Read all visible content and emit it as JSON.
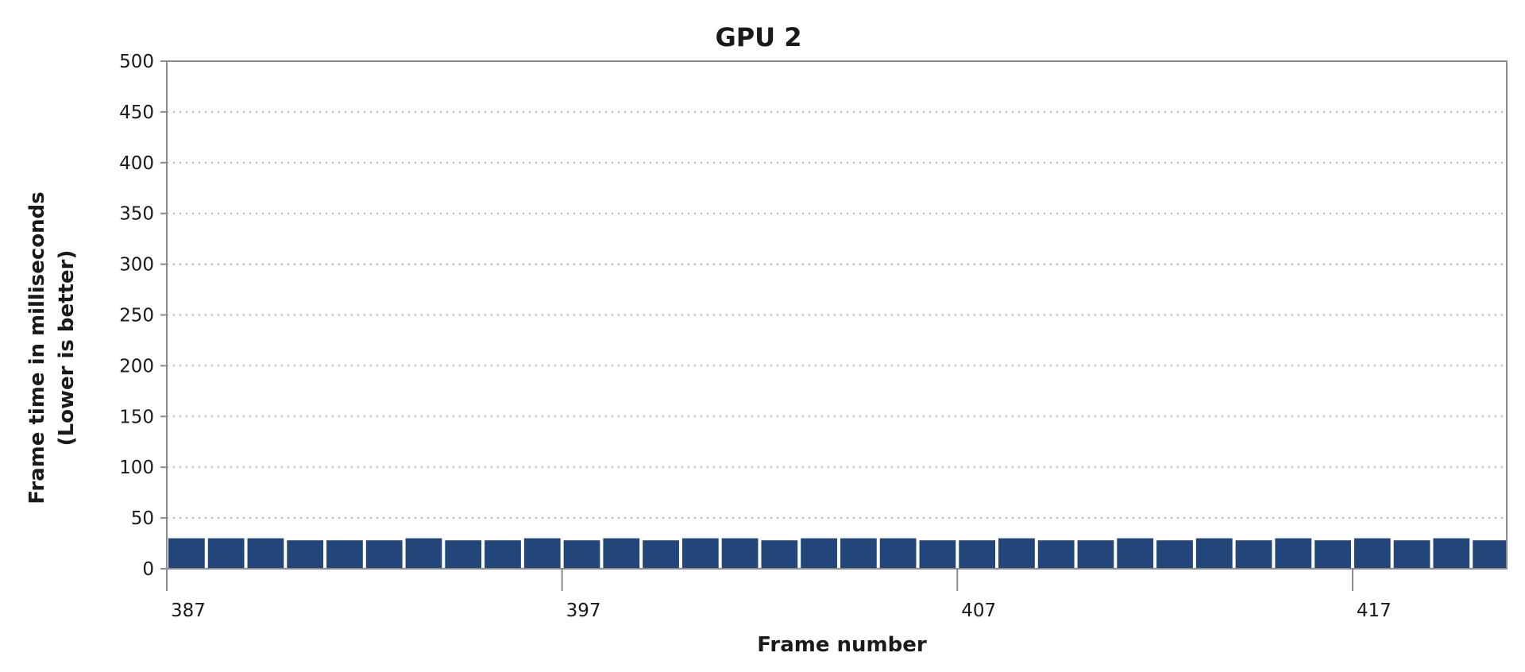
{
  "chart_data": {
    "type": "bar",
    "title": "GPU 2",
    "xlabel": "Frame number",
    "ylabel": "Frame time in milliseconds",
    "ylabel_sub": "(Lower is better)",
    "ylim": [
      0,
      500
    ],
    "yticks": [
      0,
      50,
      100,
      150,
      200,
      250,
      300,
      350,
      400,
      450,
      500
    ],
    "xticks": [
      387,
      397,
      407,
      417
    ],
    "grid": "horizontal-dotted",
    "bar_color": "#22457a",
    "x": [
      387,
      388,
      389,
      390,
      391,
      392,
      393,
      394,
      395,
      396,
      397,
      398,
      399,
      400,
      401,
      402,
      403,
      404,
      405,
      406,
      407,
      408,
      409,
      410,
      411,
      412,
      413,
      414,
      415,
      416,
      417,
      418,
      419,
      420
    ],
    "values": [
      30,
      30,
      30,
      28,
      28,
      28,
      30,
      28,
      28,
      30,
      28,
      30,
      28,
      30,
      30,
      28,
      30,
      30,
      30,
      28,
      28,
      30,
      28,
      28,
      30,
      28,
      30,
      28,
      30,
      28,
      30,
      28,
      30,
      28
    ]
  }
}
